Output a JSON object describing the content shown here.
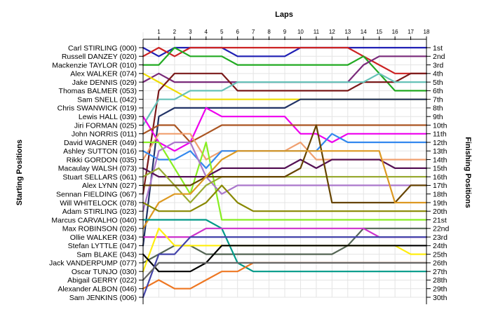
{
  "chart_data": {
    "type": "line",
    "title": "",
    "xlabel": "Laps",
    "ylabel_left": "Starting Positions",
    "ylabel_right": "Finishing Positions",
    "x": [
      0,
      1,
      2,
      3,
      4,
      5,
      6,
      7,
      8,
      9,
      10,
      11,
      12,
      13,
      14,
      15,
      16,
      17,
      18
    ],
    "x_tick_labels": [
      "1",
      "2",
      "3",
      "4",
      "5",
      "6",
      "7",
      "8",
      "9",
      "10",
      "11",
      "12",
      "13",
      "14",
      "15",
      "16",
      "17",
      "18"
    ],
    "ylim": [
      1,
      30
    ],
    "y_inverted": true,
    "grid": true,
    "starting_labels": [
      "Carl STIRLING (000)",
      "Russell DANZEY (020)",
      "Mackenzie TAYLOR (010)",
      "Alex WALKER (074)",
      "Jake DENNIS (029)",
      "Thomas BALMER (053)",
      "Sam SNELL (042)",
      "Chris SWANWICK (019)",
      "Lewis HALL (039)",
      "Jiri FORMAN (025)",
      "John NORRIS (011)",
      "David WAGNER (049)",
      "Ashley SUTTON (016)",
      "Rikki GORDON (035)",
      "Macaulay WALSH (073)",
      "Stuart SELLARS (061)",
      "Alex LYNN (027)",
      "Sennan FIELDING (067)",
      "Will WHITELOCK (078)",
      "Adam STIRLING (023)",
      "Marcus CARVALHO (040)",
      "Max ROBINSON (026)",
      "Ollie WALKER (034)",
      "Stefan LYTTLE (047)",
      "Sam BLAKE (043)",
      "Jack VANDERPUMP (077)",
      "Oscar TUNJO (030)",
      "Abigail GERRY (022)",
      "Alexander ALBON (046)",
      "Sam JENKINS (006)"
    ],
    "finishing_labels": [
      "1st",
      "2nd",
      "3rd",
      "4th",
      "5th",
      "6th",
      "7th",
      "8th",
      "9th",
      "10th",
      "11th",
      "12th",
      "13th",
      "14th",
      "15th",
      "16th",
      "17th",
      "18th",
      "19th",
      "20th",
      "21st",
      "22nd",
      "23rd",
      "24th",
      "25th",
      "26th",
      "27th",
      "28th",
      "29th",
      "30th"
    ],
    "series": [
      {
        "color": "#1f1fb4",
        "values": [
          1,
          2,
          1,
          1,
          1,
          1,
          2,
          2,
          2,
          2,
          1,
          1,
          1,
          1,
          1,
          1,
          1,
          1,
          1
        ]
      },
      {
        "color": "#cc2222",
        "values": [
          2,
          1,
          2,
          1,
          1,
          1,
          1,
          1,
          1,
          1,
          1,
          1,
          1,
          1,
          2,
          3,
          4,
          4,
          4
        ]
      },
      {
        "color": "#22aa22",
        "values": [
          3,
          3,
          1,
          2,
          2,
          2,
          3,
          3,
          3,
          3,
          3,
          3,
          3,
          3,
          2,
          4,
          6,
          6,
          6
        ]
      },
      {
        "color": "#7a2a7a",
        "values": [
          5,
          4,
          5,
          5,
          5,
          5,
          5,
          5,
          5,
          5,
          5,
          5,
          5,
          5,
          3,
          2,
          2,
          2,
          2
        ]
      },
      {
        "color": "#eedd00",
        "values": [
          4,
          5,
          6,
          7,
          7,
          7,
          7,
          7,
          7,
          7,
          7,
          7,
          7,
          7,
          7,
          7,
          7,
          7,
          7
        ]
      },
      {
        "color": "#7a1a1a",
        "values": [
          18,
          6,
          4,
          4,
          4,
          4,
          6,
          6,
          6,
          6,
          6,
          6,
          6,
          6,
          5,
          5,
          5,
          4,
          4
        ]
      },
      {
        "color": "#66c2b8",
        "values": [
          10,
          7,
          7,
          6,
          6,
          6,
          5,
          5,
          5,
          5,
          5,
          5,
          5,
          5,
          5,
          4,
          5,
          5,
          5
        ]
      },
      {
        "color": "#223366",
        "values": [
          24,
          9,
          8,
          8,
          8,
          8,
          8,
          8,
          8,
          8,
          7,
          7,
          7,
          7,
          7,
          7,
          7,
          7,
          7
        ]
      },
      {
        "color": "#ee00ee",
        "values": [
          9,
          12,
          13,
          12,
          8,
          9,
          9,
          9,
          9,
          9,
          11,
          11,
          12,
          11,
          11,
          11,
          11,
          11,
          11
        ]
      },
      {
        "color": "#aa5522",
        "values": [
          11,
          10,
          10,
          12,
          11,
          10,
          10,
          10,
          10,
          10,
          10,
          10,
          10,
          10,
          10,
          10,
          10,
          10,
          10
        ]
      },
      {
        "color": "#f0a070",
        "values": [
          14,
          11,
          11,
          11,
          14,
          13,
          13,
          13,
          13,
          13,
          12,
          14,
          14,
          14,
          14,
          14,
          14,
          14,
          14
        ]
      },
      {
        "color": "#3388ee",
        "values": [
          13,
          14,
          14,
          13,
          15,
          13,
          13,
          13,
          13,
          13,
          13,
          13,
          11,
          12,
          12,
          12,
          12,
          12,
          12
        ]
      },
      {
        "color": "#88ee22",
        "values": [
          12,
          12,
          15,
          18,
          12,
          21,
          21,
          21,
          21,
          21,
          21,
          21,
          21,
          21,
          21,
          21,
          21,
          21,
          21
        ]
      },
      {
        "color": "#aa77cc",
        "values": [
          20,
          13,
          12,
          12,
          16,
          18,
          17,
          17,
          17,
          17,
          17,
          17,
          17,
          17,
          17,
          17,
          17,
          17,
          17
        ]
      },
      {
        "color": "#551155",
        "values": [
          15,
          16,
          16,
          16,
          16,
          15,
          15,
          15,
          15,
          15,
          14,
          15,
          14,
          14,
          14,
          14,
          15,
          15,
          15
        ]
      },
      {
        "color": "#99aa33",
        "values": [
          16,
          15,
          17,
          19,
          17,
          16,
          16,
          16,
          16,
          16,
          16,
          16,
          16,
          16,
          16,
          16,
          16,
          16,
          16
        ]
      },
      {
        "color": "#664400",
        "values": [
          17,
          17,
          17,
          17,
          16,
          16,
          16,
          16,
          16,
          16,
          15,
          10,
          19,
          19,
          19,
          19,
          19,
          17,
          17
        ]
      },
      {
        "color": "#dd9922",
        "values": [
          22,
          19,
          18,
          18,
          16,
          14,
          13,
          13,
          13,
          13,
          13,
          13,
          13,
          13,
          13,
          13,
          19,
          19,
          19
        ]
      },
      {
        "color": "#556655",
        "values": [
          26,
          25,
          24,
          24,
          25,
          25,
          25,
          25,
          25,
          25,
          25,
          25,
          25,
          24,
          22,
          22,
          22,
          22,
          22
        ]
      },
      {
        "color": "#888800",
        "values": [
          19,
          20,
          20,
          20,
          19,
          17,
          19,
          20,
          20,
          20,
          20,
          20,
          20,
          20,
          20,
          20,
          20,
          20,
          20
        ]
      },
      {
        "color": "#009988",
        "values": [
          21,
          21,
          21,
          21,
          21,
          22,
          26,
          27,
          27,
          27,
          27,
          27,
          27,
          27,
          27,
          27,
          27,
          27,
          27
        ]
      },
      {
        "color": "#cc33cc",
        "values": [
          23,
          23,
          23,
          23,
          22,
          22,
          22,
          22,
          22,
          22,
          22,
          22,
          22,
          22,
          22,
          23,
          23,
          23,
          23
        ]
      },
      {
        "color": "#ffee11",
        "values": [
          27,
          22,
          24,
          24,
          24,
          24,
          24,
          24,
          24,
          24,
          24,
          24,
          24,
          24,
          24,
          24,
          24,
          25,
          25
        ]
      },
      {
        "color": "#000000",
        "values": [
          25,
          27,
          27,
          27,
          26,
          24,
          24,
          24,
          24,
          24,
          24,
          24,
          24,
          24,
          24,
          24,
          24,
          24,
          24
        ]
      },
      {
        "color": "#ee7722",
        "values": [
          29,
          28,
          29,
          29,
          28,
          27,
          27,
          26,
          26,
          26,
          26,
          26,
          26,
          26,
          26,
          26,
          26,
          26,
          26
        ]
      },
      {
        "color": "#4444aa",
        "values": [
          30,
          25,
          25,
          23,
          23,
          23,
          23,
          23,
          23,
          23,
          23,
          23,
          23,
          23,
          23,
          23,
          23,
          23,
          23
        ]
      },
      {
        "color": "#666666",
        "values": [
          28,
          26,
          26,
          26,
          26,
          26,
          26,
          26,
          26,
          26,
          26,
          26,
          26,
          26,
          26,
          26,
          26,
          26,
          26
        ]
      }
    ]
  }
}
